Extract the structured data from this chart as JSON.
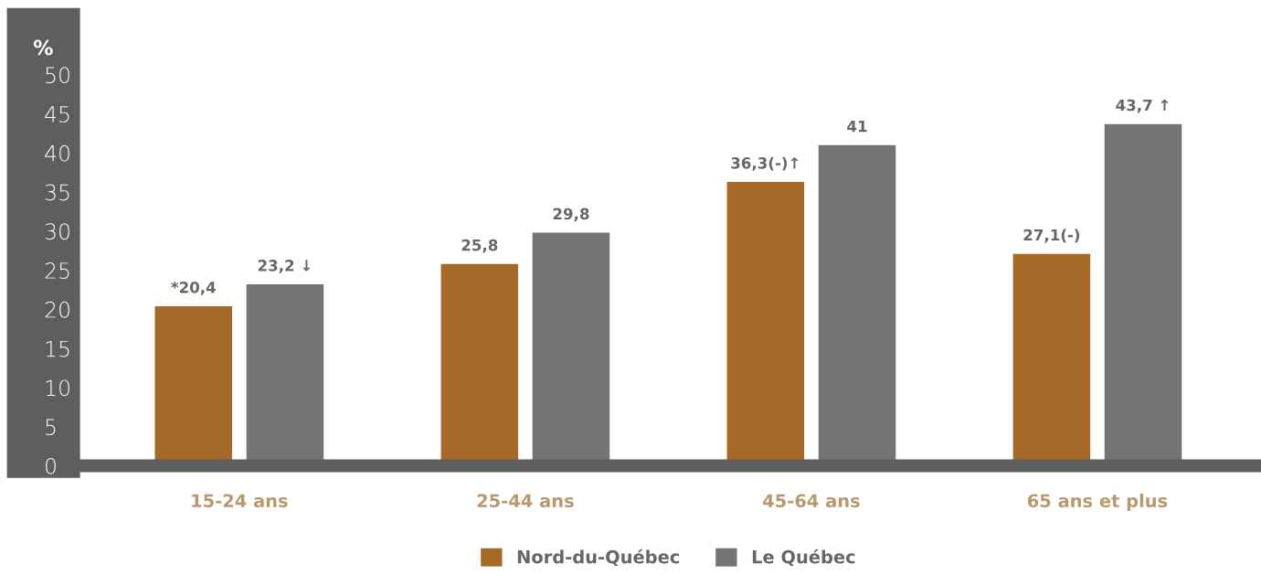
{
  "chart_data": {
    "type": "bar",
    "ylabel": "%",
    "categories": [
      "15-24 ans",
      "25-44 ans",
      "45-64 ans",
      "65 ans et plus"
    ],
    "series": [
      {
        "name": "Nord-du-Québec",
        "color": "#a66a28",
        "values": [
          20.4,
          25.8,
          36.3,
          27.1
        ],
        "value_labels": [
          "*20,4",
          "25,8",
          "36,3(-)↑",
          "27,1(-)"
        ]
      },
      {
        "name": "Le Québec",
        "color": "#747474",
        "values": [
          23.2,
          29.8,
          41,
          43.7
        ],
        "value_labels": [
          "23,2 ↓",
          "29,8",
          "41",
          "43,7 ↑"
        ]
      }
    ],
    "ylim": [
      0,
      50
    ],
    "yticks": [
      0,
      5,
      10,
      15,
      20,
      25,
      30,
      35,
      40,
      45,
      50
    ],
    "grid": false,
    "legend": "bottom"
  }
}
